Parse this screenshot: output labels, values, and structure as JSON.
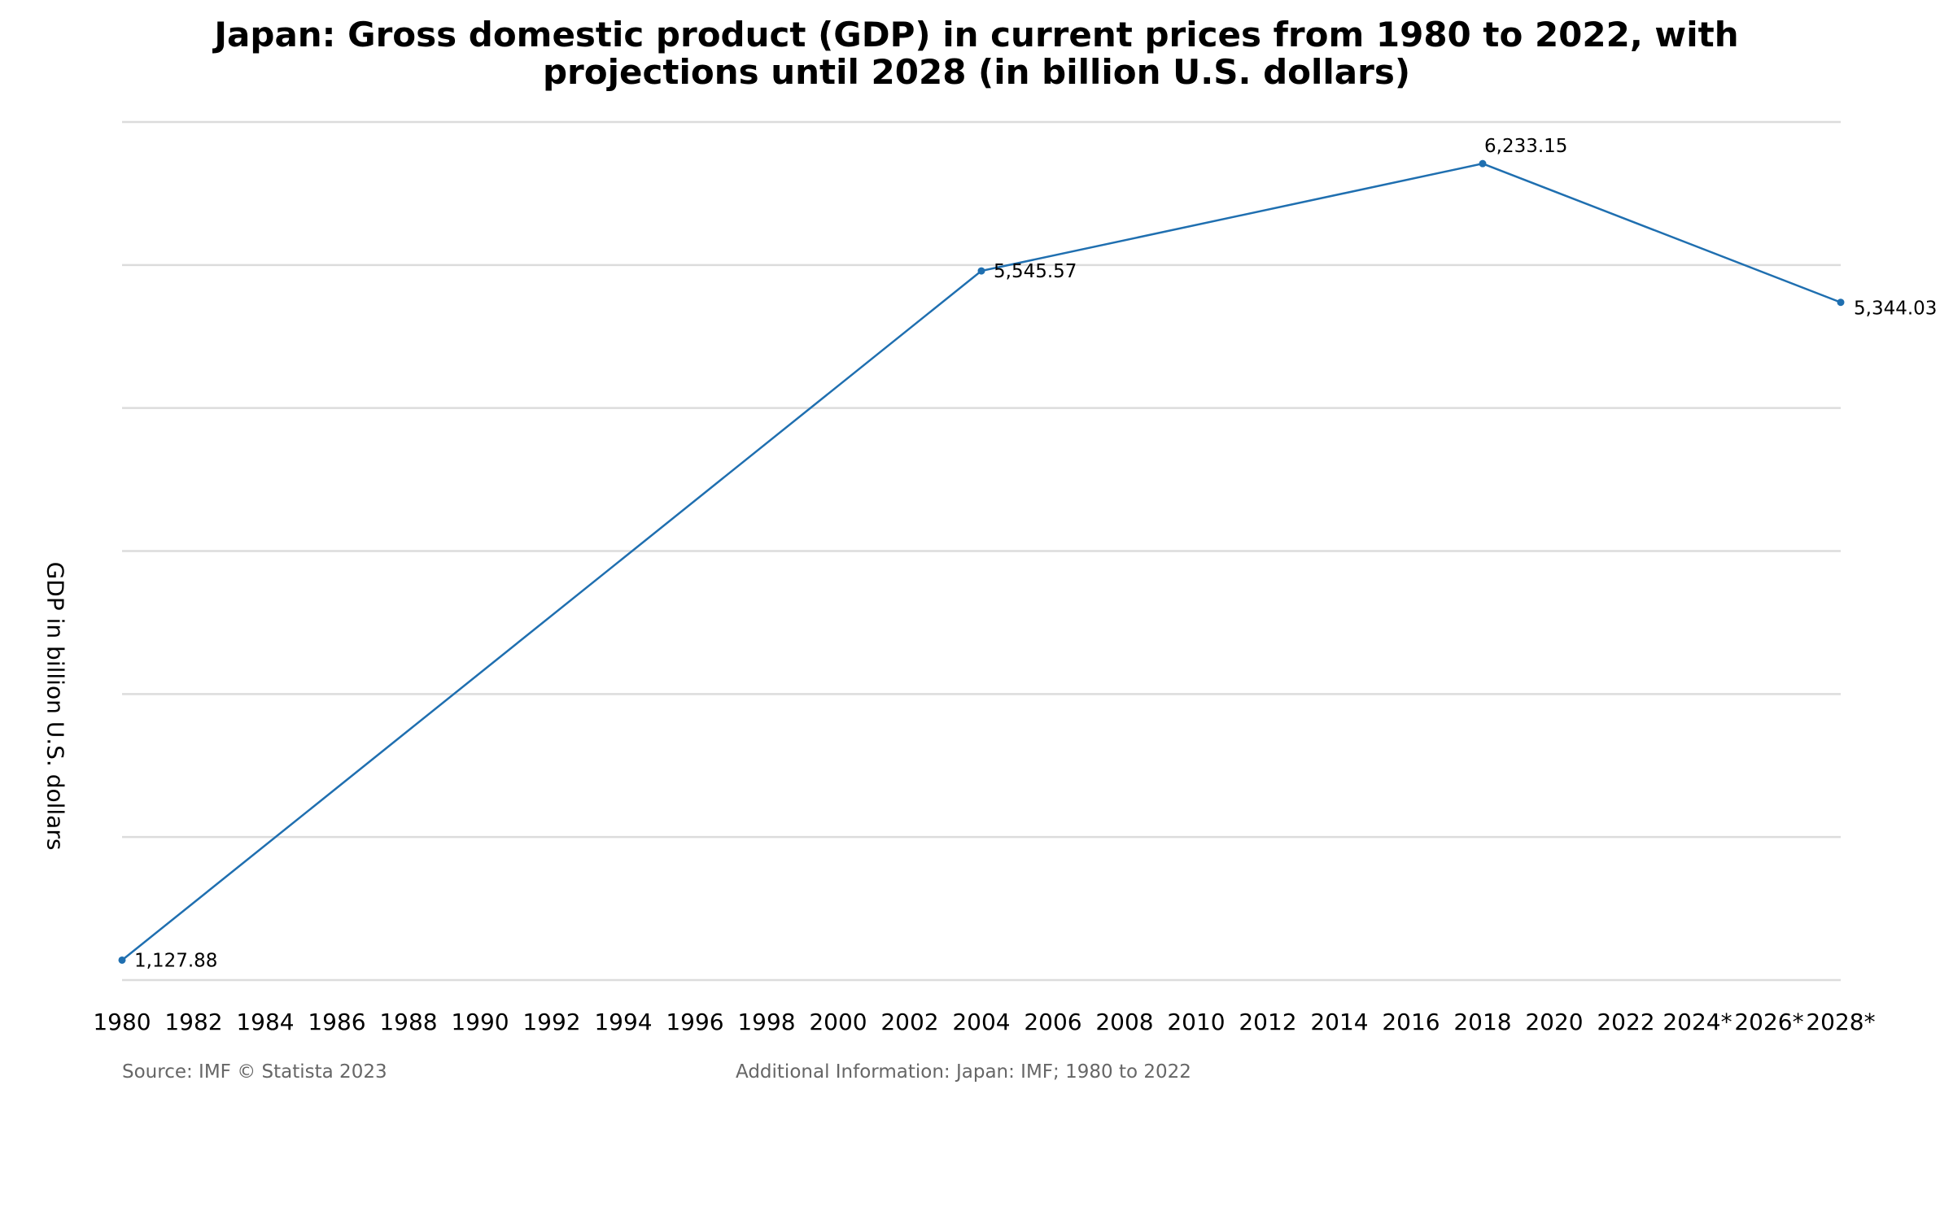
{
  "title_line1": "Japan: Gross domestic product (GDP) in current prices from 1980 to 2022, with",
  "title_line2": "projections until 2028 (in billion U.S. dollars)",
  "footer": {
    "source": "Source: IMF © Statista 2023",
    "info": "Additional Information: Japan: IMF; 1980 to 2022"
  },
  "chart_data": {
    "type": "line",
    "title": "Japan: Gross domestic product (GDP) in current prices from 1980 to 2022, with projections until 2028 (in billion U.S. dollars)",
    "ylabel": "GDP in billion U.S. dollars",
    "xlabel": "",
    "x_ticks": [
      "1980",
      "1982",
      "1984",
      "1986",
      "1988",
      "1990",
      "1992",
      "1994",
      "1996",
      "1998",
      "2000",
      "2002",
      "2004",
      "2006",
      "2008",
      "2010",
      "2012",
      "2014",
      "2016",
      "2018",
      "2020",
      "2022",
      "2024*",
      "2026*",
      "2028*"
    ],
    "ylim": [
      1000,
      6500
    ],
    "grid": true,
    "line_color": "#1f6fb0",
    "series": [
      {
        "points": [
          {
            "x": "1980",
            "y": 1127.88,
            "label": "1,127.88"
          },
          {
            "x": "2004",
            "y": 5545.57,
            "label": "5,545.57"
          },
          {
            "x": "2018",
            "y": 6233.15,
            "label": "6,233.15"
          },
          {
            "x": "2028*",
            "y": 5344.03,
            "label": "5,344.03"
          }
        ]
      }
    ]
  }
}
